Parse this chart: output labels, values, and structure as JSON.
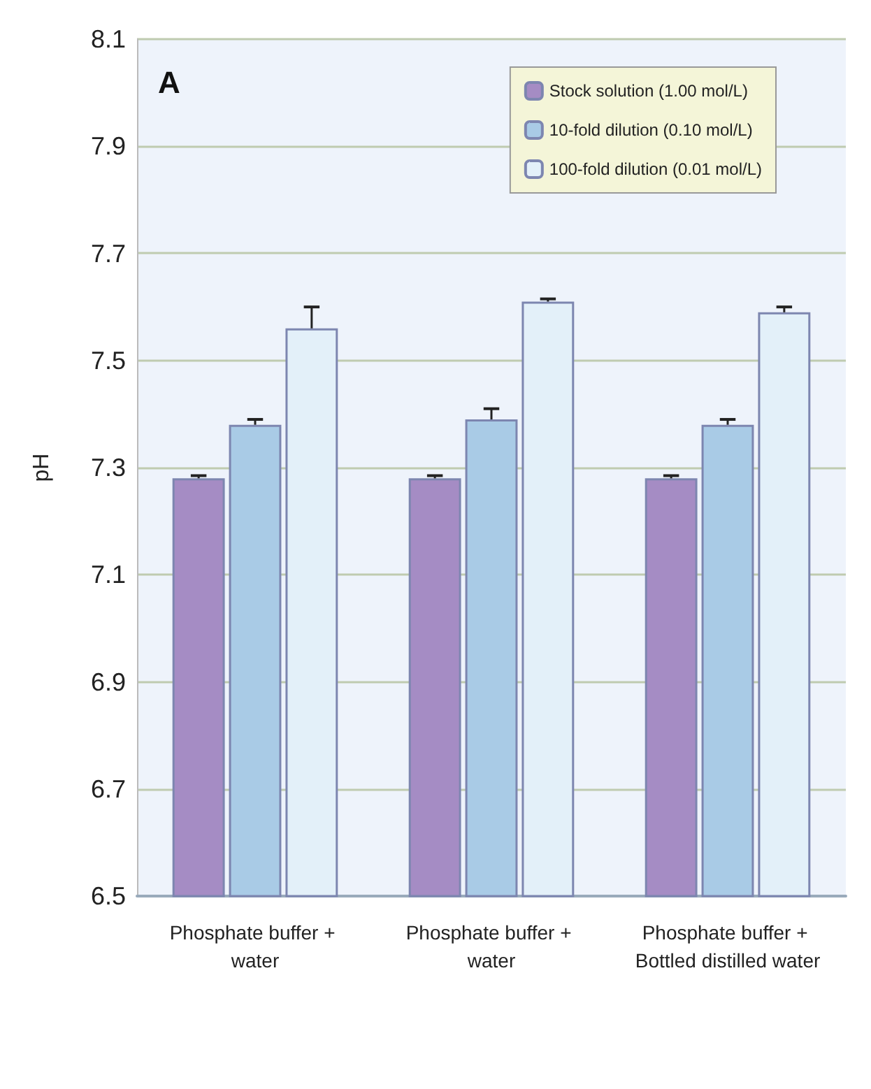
{
  "chart_data": {
    "type": "bar",
    "title": "A",
    "ylabel": "pH",
    "categories": [
      "Phosphate buffer + water",
      "Phosphate buffer + water",
      "Phosphate buffer + Bottled distilled water"
    ],
    "series": [
      {
        "name": "Stock solution (1.00 mol/L)",
        "color": "#a58cc4",
        "values": [
          7.28,
          7.28,
          7.28
        ],
        "errors": [
          0.005,
          0.005,
          0.005
        ]
      },
      {
        "name": "10-fold dilution (0.10 mol/L)",
        "color": "#a9cbe6",
        "values": [
          7.38,
          7.39,
          7.38
        ],
        "errors": [
          0.01,
          0.02,
          0.01
        ]
      },
      {
        "name": "100-fold dilution (0.01 mol/L)",
        "color": "#e3f0f9",
        "values": [
          7.56,
          7.61,
          7.59
        ],
        "errors": [
          0.04,
          0.005,
          0.01
        ]
      }
    ],
    "ylim": [
      6.5,
      8.1
    ],
    "yticks": [
      6.5,
      6.7,
      6.9,
      7.1,
      7.3,
      7.5,
      7.7,
      7.9,
      8.1
    ],
    "grid": "y",
    "legend": "top right"
  }
}
